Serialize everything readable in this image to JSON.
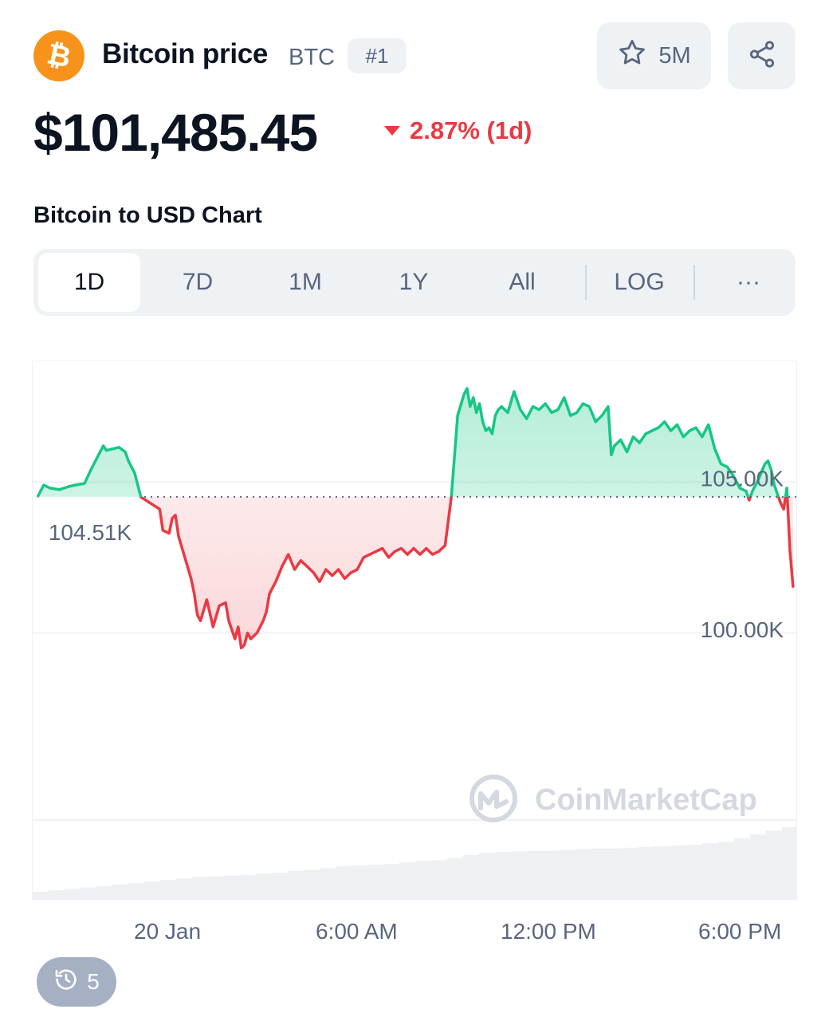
{
  "header": {
    "coin_name": "Bitcoin price",
    "symbol": "BTC",
    "rank": "#1",
    "watchlist_count": "5M",
    "star_icon": "star-icon",
    "share_icon": "share-icon",
    "logo_icon": "bitcoin-logo-icon"
  },
  "price": {
    "value": "$101,485.45",
    "change": "2.87% (1d)",
    "direction": "down",
    "change_color": "#ea3943"
  },
  "chart_section": {
    "title": "Bitcoin to USD Chart",
    "tabs": [
      {
        "label": "1D",
        "active": true
      },
      {
        "label": "7D",
        "active": false
      },
      {
        "label": "1M",
        "active": false
      },
      {
        "label": "1Y",
        "active": false
      },
      {
        "label": "All",
        "active": false
      },
      {
        "label": "LOG",
        "active": false
      },
      {
        "label": "···",
        "active": false
      }
    ],
    "watermark": "CoinMarketCap",
    "history_count": "5"
  },
  "colors": {
    "up": "#16c784",
    "down": "#ea3943",
    "accent_bg": "#eff2f5",
    "muted_text": "#58667e"
  },
  "chart_data": {
    "type": "area",
    "title": "",
    "open_value": 104510,
    "open_label": "104.51K",
    "y_ticks": [
      {
        "value": 105000,
        "label": "105.00K"
      },
      {
        "value": 100000,
        "label": "100.00K"
      }
    ],
    "x_ticks": [
      "20 Jan",
      "6:00 AM",
      "12:00 PM",
      "6:00 PM"
    ],
    "x_tick_hours": [
      0,
      6,
      12,
      18
    ],
    "x_range_hours": [
      -4.2,
      19.9
    ],
    "ylim": [
      93800,
      109000
    ],
    "grid": true,
    "series": [
      {
        "x": [
          -4.2,
          -4.0,
          -3.8,
          -3.5,
          -3.2,
          -3.0,
          -2.7,
          -2.5,
          -2.3,
          -2.1,
          -2.0,
          -1.8,
          -1.6,
          -1.4,
          -1.3,
          -1.1,
          -0.9,
          -0.6,
          -0.3,
          -0.2,
          0.0,
          0.1,
          0.2,
          0.3,
          0.5,
          0.7,
          0.8,
          0.9,
          1.0,
          1.2,
          1.4,
          1.6,
          1.8,
          1.9,
          2.1,
          2.2,
          2.3,
          2.4,
          2.5,
          2.6,
          2.8,
          3.0,
          3.1,
          3.2,
          3.4,
          3.6,
          3.8,
          4.0,
          4.2,
          4.4,
          4.6,
          4.8,
          5.0,
          5.2,
          5.4,
          5.6,
          5.8,
          6.0,
          6.2,
          6.4,
          6.6,
          6.8,
          7.0,
          7.2,
          7.4,
          7.6,
          7.8,
          8.0,
          8.2,
          8.4,
          8.6,
          8.8,
          9.0,
          9.2,
          9.4,
          9.5,
          9.6,
          9.7,
          9.8,
          9.9,
          10.0,
          10.1,
          10.2,
          10.3,
          10.4,
          10.5,
          10.6,
          10.8,
          11.0,
          11.2,
          11.4,
          11.6,
          11.8,
          12.0,
          12.2,
          12.4,
          12.6,
          12.8,
          13.0,
          13.2,
          13.4,
          13.6,
          13.8,
          14.0,
          14.1,
          14.2,
          14.4,
          14.6,
          14.8,
          15.0,
          15.2,
          15.4,
          15.6,
          15.8,
          16.0,
          16.2,
          16.4,
          16.6,
          16.8,
          17.0,
          17.2,
          17.4,
          17.6,
          17.8,
          18.0,
          18.2,
          18.4,
          18.5,
          18.6,
          18.8,
          19.0,
          19.1,
          19.2,
          19.3,
          19.4,
          19.5,
          19.6,
          19.7,
          19.8,
          19.9
        ],
        "values": [
          104500,
          104900,
          104800,
          104750,
          104850,
          104900,
          104950,
          105400,
          105800,
          106200,
          106050,
          106100,
          106150,
          106000,
          105700,
          105300,
          104500,
          104300,
          104100,
          103400,
          103300,
          103800,
          103900,
          103200,
          102500,
          101800,
          101300,
          100600,
          100400,
          101100,
          100200,
          100900,
          101000,
          100400,
          99800,
          100200,
          99500,
          99600,
          100000,
          99800,
          100000,
          100400,
          100700,
          101300,
          101700,
          102200,
          102600,
          102100,
          102400,
          102200,
          102000,
          101700,
          102100,
          101900,
          102100,
          101800,
          102000,
          102100,
          102500,
          102600,
          102700,
          102800,
          102500,
          102700,
          102800,
          102600,
          102800,
          102600,
          102800,
          102600,
          102700,
          102900,
          104500,
          107200,
          107900,
          108100,
          107500,
          107800,
          107300,
          107600,
          107000,
          106700,
          106800,
          106600,
          107200,
          107400,
          107500,
          107300,
          108000,
          107400,
          107100,
          107500,
          107400,
          107600,
          107300,
          107400,
          107800,
          107200,
          107300,
          107600,
          107500,
          107000,
          107200,
          107500,
          105900,
          106200,
          106400,
          106000,
          106500,
          106300,
          106600,
          106700,
          106800,
          107000,
          106700,
          106900,
          106500,
          106700,
          106800,
          106500,
          106900,
          106100,
          105600,
          105500,
          105200,
          104800,
          104700,
          104400,
          104700,
          105100,
          105600,
          105700,
          105400,
          104900,
          104600,
          104300,
          104100,
          104800,
          102700,
          101500
        ],
        "up_color": "#16c784",
        "down_color": "#ea3943"
      }
    ],
    "volume": [
      0.12,
      0.14,
      0.16,
      0.18,
      0.2,
      0.22,
      0.24,
      0.26,
      0.28,
      0.3,
      0.32,
      0.33,
      0.34,
      0.35,
      0.37,
      0.38,
      0.4,
      0.42,
      0.44,
      0.47,
      0.48,
      0.49,
      0.5,
      0.52,
      0.54,
      0.55,
      0.58,
      0.62,
      0.65,
      0.66,
      0.67,
      0.68,
      0.68,
      0.69,
      0.7,
      0.71,
      0.71,
      0.72,
      0.73,
      0.74,
      0.75,
      0.76,
      0.78,
      0.8,
      0.85,
      0.9,
      0.95,
      1.0
    ]
  }
}
